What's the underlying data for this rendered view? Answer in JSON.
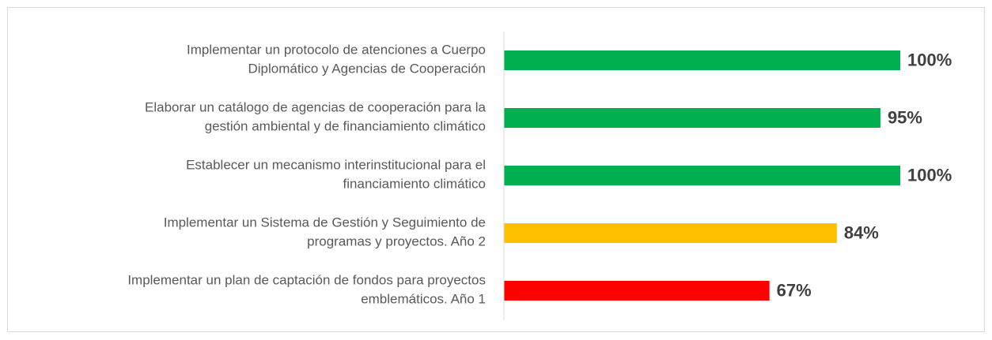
{
  "chart_data": {
    "type": "bar",
    "orientation": "horizontal",
    "categories": [
      [
        "Implementar un protocolo de atenciones a Cuerpo",
        "Diplomático y Agencias de Cooperación"
      ],
      [
        "Elaborar un catálogo de agencias de cooperación para la",
        "gestión ambiental y de financiamiento climático"
      ],
      [
        "Establecer un mecanismo interinstitucional para el",
        "financiamiento climático"
      ],
      [
        "Implementar un Sistema de Gestión y Seguimiento de",
        "programas y proyectos. Año 2"
      ],
      [
        "Implementar un plan de captación de fondos para proyectos",
        "emblemáticos. Año 1"
      ]
    ],
    "values": [
      100,
      95,
      100,
      84,
      67
    ],
    "value_labels": [
      "100%",
      "95%",
      "100%",
      "84%",
      "67%"
    ],
    "colors": [
      "#00b050",
      "#00b050",
      "#00b050",
      "#ffc000",
      "#ff0000"
    ],
    "xlim": [
      0,
      100
    ]
  }
}
